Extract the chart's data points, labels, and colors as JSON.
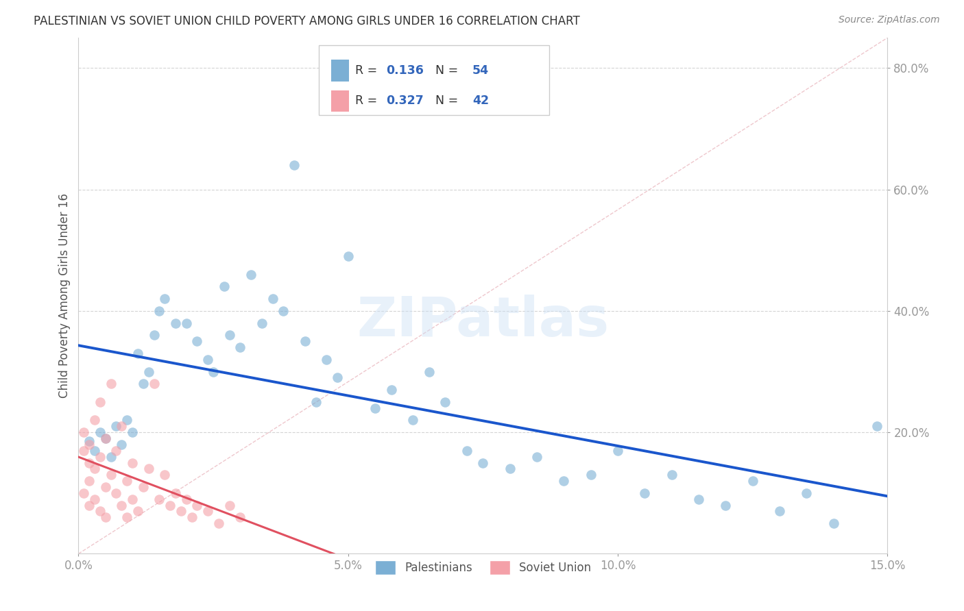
{
  "title": "PALESTINIAN VS SOVIET UNION CHILD POVERTY AMONG GIRLS UNDER 16 CORRELATION CHART",
  "source": "Source: ZipAtlas.com",
  "ylabel": "Child Poverty Among Girls Under 16",
  "xlim": [
    0.0,
    0.15
  ],
  "ylim": [
    0.0,
    0.85
  ],
  "xticks": [
    0.0,
    0.05,
    0.1,
    0.15
  ],
  "xtick_labels": [
    "0.0%",
    "5.0%",
    "10.0%",
    "15.0%"
  ],
  "yticks": [
    0.2,
    0.4,
    0.6,
    0.8
  ],
  "ytick_labels": [
    "20.0%",
    "40.0%",
    "60.0%",
    "80.0%"
  ],
  "r_palestinians": 0.136,
  "n_palestinians": 54,
  "r_soviet": 0.327,
  "n_soviet": 42,
  "color_palestinians": "#7bafd4",
  "color_soviet": "#f4a0a8",
  "color_line_palestinians": "#1a56cc",
  "color_line_soviet": "#e05060",
  "background_color": "#ffffff",
  "grid_color": "#d0d0d0",
  "palestinians_x": [
    0.002,
    0.003,
    0.004,
    0.005,
    0.006,
    0.007,
    0.008,
    0.009,
    0.01,
    0.011,
    0.012,
    0.013,
    0.014,
    0.015,
    0.016,
    0.018,
    0.02,
    0.022,
    0.024,
    0.025,
    0.027,
    0.028,
    0.03,
    0.032,
    0.034,
    0.036,
    0.038,
    0.04,
    0.042,
    0.044,
    0.046,
    0.048,
    0.05,
    0.055,
    0.058,
    0.062,
    0.065,
    0.068,
    0.072,
    0.075,
    0.08,
    0.085,
    0.09,
    0.095,
    0.1,
    0.105,
    0.11,
    0.115,
    0.12,
    0.125,
    0.13,
    0.135,
    0.14,
    0.148
  ],
  "palestinians_y": [
    0.185,
    0.17,
    0.2,
    0.19,
    0.16,
    0.21,
    0.18,
    0.22,
    0.2,
    0.33,
    0.28,
    0.3,
    0.36,
    0.4,
    0.42,
    0.38,
    0.38,
    0.35,
    0.32,
    0.3,
    0.44,
    0.36,
    0.34,
    0.46,
    0.38,
    0.42,
    0.4,
    0.64,
    0.35,
    0.25,
    0.32,
    0.29,
    0.49,
    0.24,
    0.27,
    0.22,
    0.3,
    0.25,
    0.17,
    0.15,
    0.14,
    0.16,
    0.12,
    0.13,
    0.17,
    0.1,
    0.13,
    0.09,
    0.08,
    0.12,
    0.07,
    0.1,
    0.05,
    0.21
  ],
  "soviet_x": [
    0.001,
    0.001,
    0.001,
    0.002,
    0.002,
    0.002,
    0.002,
    0.003,
    0.003,
    0.003,
    0.004,
    0.004,
    0.004,
    0.005,
    0.005,
    0.005,
    0.006,
    0.006,
    0.007,
    0.007,
    0.008,
    0.008,
    0.009,
    0.009,
    0.01,
    0.01,
    0.011,
    0.012,
    0.013,
    0.014,
    0.015,
    0.016,
    0.017,
    0.018,
    0.019,
    0.02,
    0.021,
    0.022,
    0.024,
    0.026,
    0.028,
    0.03
  ],
  "soviet_y": [
    0.17,
    0.2,
    0.1,
    0.15,
    0.18,
    0.12,
    0.08,
    0.22,
    0.14,
    0.09,
    0.16,
    0.25,
    0.07,
    0.19,
    0.11,
    0.06,
    0.13,
    0.28,
    0.1,
    0.17,
    0.08,
    0.21,
    0.12,
    0.06,
    0.15,
    0.09,
    0.07,
    0.11,
    0.14,
    0.28,
    0.09,
    0.13,
    0.08,
    0.1,
    0.07,
    0.09,
    0.06,
    0.08,
    0.07,
    0.05,
    0.08,
    0.06
  ]
}
